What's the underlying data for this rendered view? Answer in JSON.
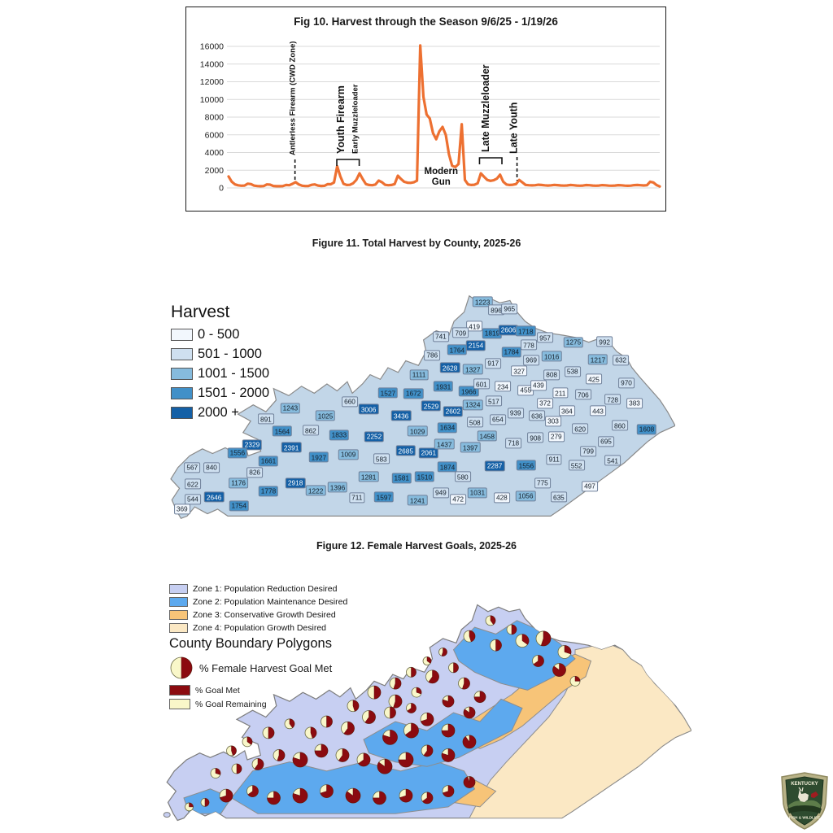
{
  "footer_logo": {
    "text_top": "KENTUCKY",
    "text_bottom": "FISH & WILDLIFE"
  },
  "chart_data": [
    {
      "id": "fig10",
      "type": "line",
      "title": "Fig 10. Harvest through the Season 9/6/25 - 1/19/26",
      "xlabel": "",
      "ylabel": "",
      "x_start": "9/6/25",
      "x_end": "1/19/26",
      "ylim": [
        0,
        16000
      ],
      "y_ticks": [
        0,
        2000,
        4000,
        6000,
        8000,
        10000,
        12000,
        14000,
        16000
      ],
      "grid": true,
      "line_color": "#ED7031",
      "values": [
        1300,
        700,
        400,
        290,
        250,
        270,
        480,
        430,
        260,
        210,
        195,
        215,
        400,
        365,
        225,
        195,
        190,
        205,
        330,
        300,
        460,
        650,
        390,
        245,
        215,
        225,
        350,
        400,
        265,
        225,
        240,
        420,
        410,
        620,
        2450,
        1300,
        460,
        335,
        345,
        520,
        900,
        1650,
        1000,
        430,
        335,
        305,
        390,
        830,
        650,
        345,
        305,
        330,
        430,
        1380,
        1000,
        690,
        590,
        570,
        630,
        820,
        16100,
        10300,
        8300,
        7850,
        6200,
        5500,
        6400,
        6900,
        6000,
        3800,
        2500,
        2350,
        2700,
        7200,
        900,
        400,
        330,
        360,
        520,
        1650,
        1250,
        900,
        800,
        860,
        1050,
        1500,
        700,
        390,
        330,
        360,
        430,
        900,
        620,
        340,
        300,
        285,
        305,
        360,
        330,
        290,
        270,
        290,
        340,
        310,
        280,
        260,
        280,
        330,
        300,
        270,
        250,
        270,
        320,
        300,
        265,
        245,
        265,
        315,
        295,
        260,
        245,
        265,
        310,
        290,
        260,
        240,
        260,
        310,
        330,
        300,
        280,
        300,
        700,
        620,
        320,
        170
      ],
      "annotations": [
        {
          "label": "Antlerless Firearm (CWD Zone)",
          "x": 0.154,
          "type": "vertical",
          "font": 9.5,
          "bottom": 152,
          "marker": "dash",
          "m1": 157,
          "m2": 184
        },
        {
          "label": "Youth Firearm",
          "x": 0.268,
          "type": "vertical",
          "font": 12.5,
          "bottom": 150,
          "marker": "bracket",
          "s1": 0.251,
          "s2": 0.303,
          "m1": 157,
          "m2": 165
        },
        {
          "label": "Early Muzzleloader",
          "x": 0.299,
          "type": "vertical",
          "font": 9.5,
          "bottom": 150
        },
        {
          "label": "Modern Gun",
          "x": 0.493,
          "type": "horizontal",
          "font": 11.5,
          "bottom": 175
        },
        {
          "label": "Late Muzzleloader",
          "x": 0.604,
          "type": "vertical",
          "font": 12.5,
          "bottom": 148,
          "marker": "bracket",
          "s1": 0.582,
          "s2": 0.634,
          "m1": 155,
          "m2": 163
        },
        {
          "label": "Late Youth",
          "x": 0.669,
          "type": "vertical",
          "font": 12.5,
          "bottom": 150,
          "marker": "dash",
          "m1": 154,
          "m2": 183
        }
      ]
    },
    {
      "id": "fig11",
      "type": "choropleth-map",
      "caption": "Figure 11. Total Harvest by County, 2025-26",
      "legend_title": "Harvest",
      "classes": [
        {
          "label": "0 - 500",
          "color": "#f2f7fd"
        },
        {
          "label": "501 - 1000",
          "color": "#cfe0f0"
        },
        {
          "label": "1001 - 1500",
          "color": "#86bbdd"
        },
        {
          "label": "1501 - 2000",
          "color": "#4190c8"
        },
        {
          "label": "2000 +",
          "color": "#1460a6"
        }
      ],
      "counties": [
        [
          1223,
          62.1,
          4.6
        ],
        [
          896,
          64.8,
          8.1
        ],
        [
          965,
          67.4,
          7.7
        ],
        [
          419,
          60.5,
          15.1
        ],
        [
          709,
          57.8,
          17.9
        ],
        [
          741,
          53.9,
          19.6
        ],
        [
          1819,
          64.0,
          18.2
        ],
        [
          2606,
          67.2,
          16.8
        ],
        [
          1718,
          70.6,
          17.2
        ],
        [
          957,
          74.4,
          20.0
        ],
        [
          1275,
          80.0,
          22.1
        ],
        [
          992,
          86.1,
          21.8
        ],
        [
          2154,
          60.8,
          23.5
        ],
        [
          1764,
          57.1,
          25.3
        ],
        [
          786,
          52.2,
          27.7
        ],
        [
          1784,
          67.8,
          26.3
        ],
        [
          778,
          71.2,
          23.2
        ],
        [
          969,
          71.7,
          29.8
        ],
        [
          1016,
          75.7,
          28.1
        ],
        [
          1217,
          84.8,
          29.5
        ],
        [
          632,
          89.3,
          29.8
        ],
        [
          917,
          64.2,
          31.2
        ],
        [
          1327,
          60.2,
          33.7
        ],
        [
          2628,
          55.7,
          33.0
        ],
        [
          327,
          69.3,
          34.4
        ],
        [
          808,
          75.7,
          36.1
        ],
        [
          538,
          79.8,
          34.7
        ],
        [
          425,
          84.0,
          37.9
        ],
        [
          970,
          90.4,
          39.6
        ],
        [
          1111,
          49.6,
          36.1
        ],
        [
          1931,
          54.4,
          41.1
        ],
        [
          1966,
          59.4,
          43.2
        ],
        [
          601,
          61.9,
          40.0
        ],
        [
          234,
          66.1,
          41.1
        ],
        [
          455,
          70.6,
          42.8
        ],
        [
          439,
          73.1,
          40.7
        ],
        [
          211,
          77.4,
          43.9
        ],
        [
          706,
          81.9,
          44.6
        ],
        [
          728,
          87.7,
          46.7
        ],
        [
          383,
          92.0,
          48.4
        ],
        [
          1527,
          43.5,
          43.9
        ],
        [
          1672,
          48.5,
          44.2
        ],
        [
          2529,
          52.0,
          49.5
        ],
        [
          2602,
          56.3,
          51.9
        ],
        [
          1324,
          60.2,
          49.1
        ],
        [
          517,
          64.3,
          47.4
        ],
        [
          372,
          74.4,
          48.4
        ],
        [
          364,
          78.7,
          51.6
        ],
        [
          443,
          84.8,
          51.6
        ],
        [
          939,
          68.6,
          52.6
        ],
        [
          636,
          72.8,
          53.7
        ],
        [
          303,
          76.0,
          56.1
        ],
        [
          620,
          81.3,
          59.3
        ],
        [
          860,
          89.1,
          57.9
        ],
        [
          1608,
          94.4,
          59.6
        ],
        [
          279,
          76.6,
          62.8
        ],
        [
          908,
          72.5,
          63.2
        ],
        [
          718,
          68.2,
          65.6
        ],
        [
          695,
          86.4,
          64.9
        ],
        [
          799,
          82.9,
          69.1
        ],
        [
          911,
          76.2,
          72.6
        ],
        [
          552,
          80.6,
          75.1
        ],
        [
          541,
          87.7,
          73.0
        ],
        [
          1556,
          70.7,
          75.1
        ],
        [
          775,
          73.9,
          82.8
        ],
        [
          1056,
          70.6,
          88.4
        ],
        [
          635,
          77.1,
          88.8
        ],
        [
          497,
          83.2,
          84.2
        ],
        [
          660,
          36.0,
          47.7
        ],
        [
          1243,
          24.3,
          50.5
        ],
        [
          891,
          19.5,
          55.1
        ],
        [
          1025,
          31.2,
          53.7
        ],
        [
          1564,
          22.7,
          60.4
        ],
        [
          862,
          28.3,
          60.0
        ],
        [
          1833,
          33.9,
          62.1
        ],
        [
          2329,
          16.8,
          66.3
        ],
        [
          2391,
          24.5,
          67.4
        ],
        [
          1556,
          13.9,
          69.8
        ],
        [
          1661,
          20.0,
          73.3
        ],
        [
          1927,
          29.9,
          71.6
        ],
        [
          1009,
          35.7,
          70.5
        ],
        [
          567,
          5.0,
          76.1
        ],
        [
          840,
          8.8,
          76.1
        ],
        [
          826,
          17.3,
          78.2
        ],
        [
          622,
          5.1,
          83.2
        ],
        [
          1176,
          14.1,
          82.8
        ],
        [
          2918,
          25.3,
          82.8
        ],
        [
          1222,
          29.3,
          86.0
        ],
        [
          1396,
          33.6,
          84.6
        ],
        [
          544,
          5.1,
          89.8
        ],
        [
          2646,
          9.3,
          88.8
        ],
        [
          1778,
          20.0,
          86.3
        ],
        [
          369,
          3.0,
          94.0
        ],
        [
          1754,
          14.2,
          92.6
        ],
        [
          711,
          37.4,
          89.1
        ],
        [
          1597,
          42.7,
          88.8
        ],
        [
          3006,
          39.7,
          50.9
        ],
        [
          3436,
          46.1,
          53.7
        ],
        [
          2252,
          40.8,
          62.8
        ],
        [
          1029,
          49.3,
          60.4
        ],
        [
          1634,
          55.2,
          58.9
        ],
        [
          508,
          60.6,
          56.5
        ],
        [
          654,
          65.1,
          55.4
        ],
        [
          2685,
          47.0,
          68.8
        ],
        [
          2061,
          51.5,
          69.8
        ],
        [
          1437,
          54.6,
          66.0
        ],
        [
          1397,
          59.7,
          67.4
        ],
        [
          1458,
          63.0,
          62.5
        ],
        [
          583,
          42.2,
          72.3
        ],
        [
          1281,
          39.7,
          80.0
        ],
        [
          1581,
          46.2,
          80.7
        ],
        [
          1510,
          50.7,
          80.0
        ],
        [
          1874,
          55.2,
          75.8
        ],
        [
          580,
          58.2,
          80.0
        ],
        [
          2287,
          64.5,
          75.4
        ],
        [
          949,
          53.9,
          87.0
        ],
        [
          1241,
          49.3,
          90.2
        ],
        [
          472,
          57.3,
          89.8
        ],
        [
          1031,
          61.1,
          87.0
        ],
        [
          428,
          65.9,
          89.1
        ]
      ]
    },
    {
      "id": "fig12",
      "type": "map-pies",
      "caption": "Figure 12. Female Harvest Goals, 2025-26",
      "zones": [
        {
          "label": "Zone 1: Population Reduction Desired",
          "color": "#c7cff2"
        },
        {
          "label": "Zone 2: Population Maintenance Desired",
          "color": "#5da9ee"
        },
        {
          "label": "Zone 3: Conservative Growth Desired",
          "color": "#f7c478"
        },
        {
          "label": "Zone 4: Population Growth Desired",
          "color": "#fbe8c4"
        }
      ],
      "legend_heading": "County Boundary Polygons",
      "pie_legend_label": "% Female Harvest Goal Met",
      "goal_met_label": "% Goal Met",
      "goal_met_color": "#8b0b10",
      "goal_remaining_label": "% Goal Remaining",
      "goal_remaining_color": "#f9f7c9",
      "pies": [
        [
          58,
          16,
          7,
          0.45
        ],
        [
          62,
          9,
          6,
          0.4
        ],
        [
          66,
          13,
          6,
          0.5
        ],
        [
          63,
          20,
          7,
          0.5
        ],
        [
          68,
          18,
          8,
          0.35
        ],
        [
          72,
          17,
          9,
          0.55
        ],
        [
          76,
          23,
          8,
          0.3
        ],
        [
          71,
          27,
          7,
          0.65
        ],
        [
          75,
          31,
          8,
          0.85
        ],
        [
          78,
          36,
          6,
          0.25
        ],
        [
          47,
          32,
          6,
          0.5
        ],
        [
          50,
          27,
          5,
          0.35
        ],
        [
          53,
          23,
          5,
          0.55
        ],
        [
          51,
          34,
          8,
          0.6
        ],
        [
          55,
          30,
          6,
          0.5
        ],
        [
          57,
          37,
          7,
          0.55
        ],
        [
          60,
          43,
          7,
          0.75
        ],
        [
          44,
          37,
          7,
          0.55
        ],
        [
          40,
          41,
          8,
          0.5
        ],
        [
          44,
          45,
          8,
          0.55
        ],
        [
          48,
          41,
          6,
          0.3
        ],
        [
          54,
          45,
          7,
          0.8
        ],
        [
          58,
          50,
          7,
          0.85
        ],
        [
          36,
          47,
          7,
          0.45
        ],
        [
          39,
          52,
          8,
          0.6
        ],
        [
          43,
          50,
          7,
          0.5
        ],
        [
          47,
          48,
          6,
          0.65
        ],
        [
          50,
          53,
          8,
          0.7
        ],
        [
          54,
          58,
          8,
          0.75
        ],
        [
          47,
          58,
          9,
          0.65
        ],
        [
          43,
          61,
          9,
          0.8
        ],
        [
          35,
          57,
          8,
          0.6
        ],
        [
          31,
          54,
          7,
          0.5
        ],
        [
          28,
          59,
          7,
          0.45
        ],
        [
          24,
          55,
          6,
          0.4
        ],
        [
          20,
          59,
          7,
          0.5
        ],
        [
          16,
          63,
          6,
          0.35
        ],
        [
          13,
          67,
          6,
          0.45
        ],
        [
          58,
          63,
          8,
          0.9
        ],
        [
          54,
          69,
          8,
          0.8
        ],
        [
          50,
          67,
          7,
          0.6
        ],
        [
          46,
          71,
          9,
          0.75
        ],
        [
          42,
          74,
          9,
          0.85
        ],
        [
          38,
          71,
          8,
          0.65
        ],
        [
          34,
          69,
          8,
          0.6
        ],
        [
          30,
          67,
          8,
          0.75
        ],
        [
          26,
          71,
          9,
          0.8
        ],
        [
          22,
          69,
          7,
          0.55
        ],
        [
          18,
          73,
          7,
          0.6
        ],
        [
          14,
          75,
          6,
          0.5
        ],
        [
          10,
          77,
          6,
          0.3
        ],
        [
          12,
          87,
          8,
          0.7
        ],
        [
          17,
          85,
          7,
          0.65
        ],
        [
          21,
          88,
          8,
          0.75
        ],
        [
          26,
          87,
          9,
          0.8
        ],
        [
          31,
          85,
          8,
          0.7
        ],
        [
          36,
          87,
          9,
          0.85
        ],
        [
          41,
          88,
          8,
          0.75
        ],
        [
          46,
          87,
          8,
          0.7
        ],
        [
          50,
          88,
          7,
          0.65
        ],
        [
          54,
          85,
          7,
          0.7
        ],
        [
          58,
          81,
          7,
          0.95
        ],
        [
          5,
          92,
          5,
          0.25
        ],
        [
          8,
          90,
          5,
          0.5
        ]
      ]
    }
  ]
}
